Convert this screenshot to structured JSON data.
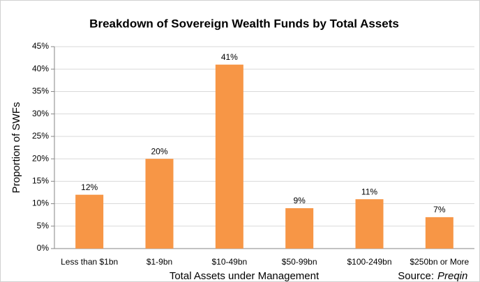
{
  "chart_data": {
    "type": "bar",
    "title": "Breakdown of Sovereign Wealth Funds by Total Assets",
    "x_label": "Total Assets under Management",
    "y_label": "Proportion of SWFs",
    "source_label": "Source:",
    "source_name": "Preqin",
    "categories": [
      "Less than $1bn",
      "$1-9bn",
      "$10-49bn",
      "$50-99bn",
      "$100-249bn",
      "$250bn or More"
    ],
    "values": [
      12,
      20,
      41,
      9,
      11,
      7
    ],
    "value_labels": [
      "12%",
      "20%",
      "41%",
      "9%",
      "11%",
      "7%"
    ],
    "color": "#f79646",
    "ylim": [
      0,
      45
    ],
    "yticks": [
      {
        "value": 0,
        "label": "0%"
      },
      {
        "value": 5,
        "label": "5%"
      },
      {
        "value": 10,
        "label": "10%"
      },
      {
        "value": 15,
        "label": "15%"
      },
      {
        "value": 20,
        "label": "20%"
      },
      {
        "value": 25,
        "label": "25%"
      },
      {
        "value": 30,
        "label": "30%"
      },
      {
        "value": 35,
        "label": "35%"
      },
      {
        "value": 40,
        "label": "40%"
      },
      {
        "value": 45,
        "label": "45%"
      }
    ],
    "grid": true
  }
}
